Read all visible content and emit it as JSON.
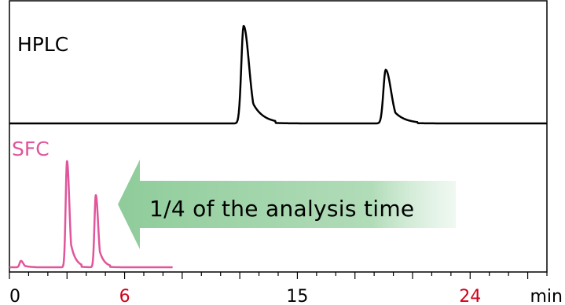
{
  "chart_data": {
    "type": "line",
    "x_unit": "min",
    "x_ticks": [
      {
        "value": 0,
        "label": "0",
        "color": "#000000"
      },
      {
        "value": 6,
        "label": "6",
        "color": "#d0021b"
      },
      {
        "value": 15,
        "label": "15",
        "color": "#000000"
      },
      {
        "value": 24,
        "label": "24",
        "color": "#d0021b"
      }
    ],
    "x_minor_tick_step": 1,
    "xlim": [
      0,
      28
    ],
    "series": [
      {
        "name": "HPLC",
        "color": "#000000",
        "peaks": [
          {
            "time": 12.2,
            "height": 1.0
          },
          {
            "time": 19.6,
            "height": 0.55
          }
        ]
      },
      {
        "name": "SFC",
        "color": "#e0559b",
        "peaks": [
          {
            "time": 0.6,
            "height": 0.06
          },
          {
            "time": 3.0,
            "height": 1.0
          },
          {
            "time": 4.5,
            "height": 0.68
          }
        ]
      }
    ],
    "annotation": {
      "text": "1/4 of the analysis time",
      "color": "#8fcc9a"
    }
  }
}
